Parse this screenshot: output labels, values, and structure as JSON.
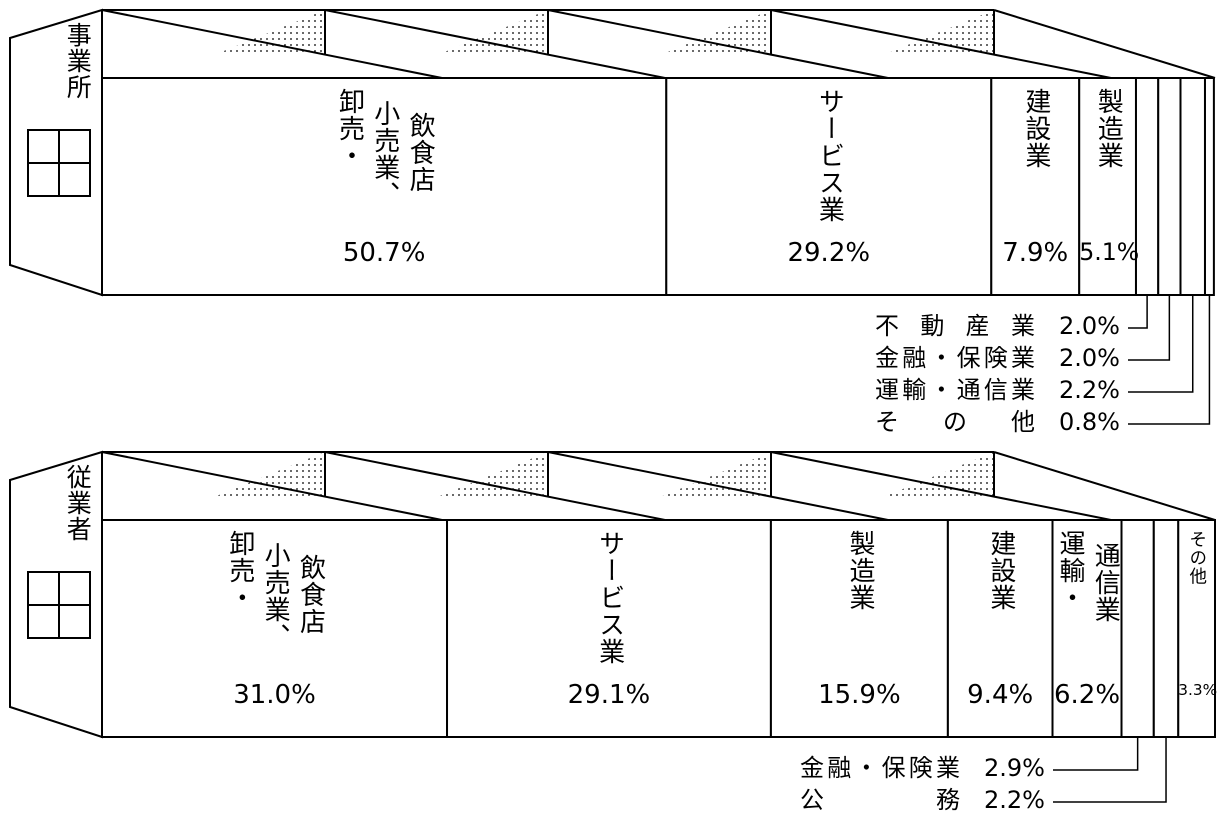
{
  "chart_data": [
    {
      "type": "stacked-building",
      "label": "事業所",
      "categories": [
        [
          "卸売・",
          "小売業、",
          "飲食店"
        ],
        [
          "サービス業"
        ],
        [
          "建設業"
        ],
        [
          "製造業"
        ],
        [
          "不動産業"
        ],
        [
          "金融・保険業"
        ],
        [
          "運輸・通信業"
        ],
        [
          "その他"
        ]
      ],
      "values": [
        50.7,
        29.2,
        7.9,
        5.1,
        2.0,
        2.0,
        2.2,
        0.8
      ],
      "value_labels": [
        "50.7%",
        "29.2%",
        "7.9%",
        "5.1%",
        "2.0%",
        "2.0%",
        "2.2%",
        "0.8%"
      ]
    },
    {
      "type": "stacked-building",
      "label": "従業者",
      "categories": [
        [
          "卸売・",
          "小売業、",
          "飲食店"
        ],
        [
          "サービス業"
        ],
        [
          "製造業"
        ],
        [
          "建設業"
        ],
        [
          "運輸・",
          "通信業"
        ],
        [
          "金融・保険業"
        ],
        [
          "公務"
        ],
        [
          "その他"
        ]
      ],
      "values": [
        31.0,
        29.1,
        15.9,
        9.4,
        6.2,
        2.9,
        2.2,
        3.3
      ],
      "value_labels": [
        "31.0%",
        "29.1%",
        "15.9%",
        "9.4%",
        "6.2%",
        "2.9%",
        "2.2%",
        "3.3%"
      ]
    }
  ]
}
